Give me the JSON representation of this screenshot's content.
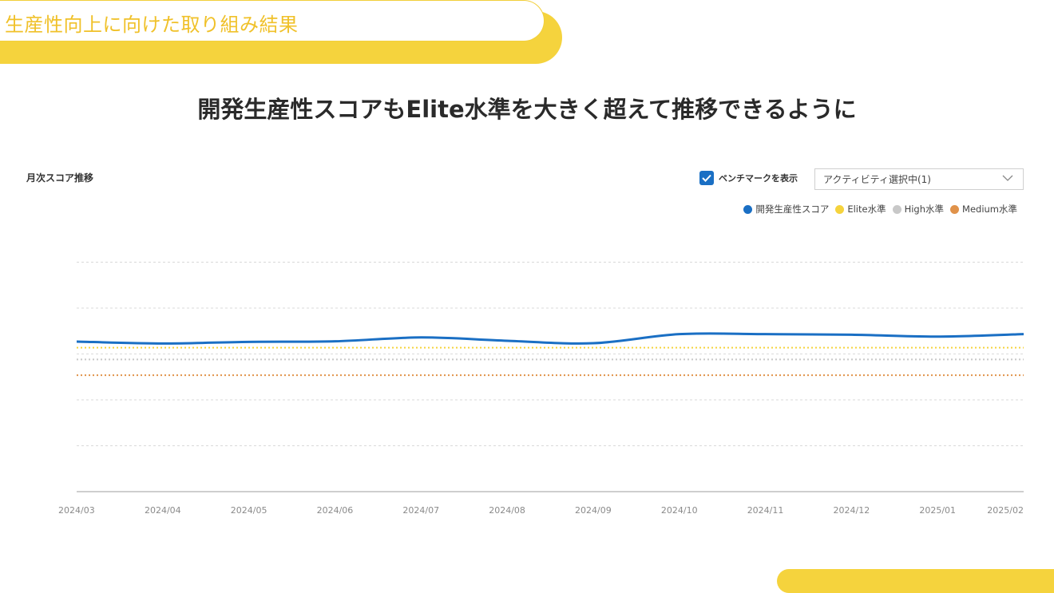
{
  "banner": {
    "text": "生産性向上に向けた取り組み結果"
  },
  "headline": "開発生産性スコアもElite水準を大きく超えて推移できるように",
  "chart_panel": {
    "title": "月次スコア推移",
    "benchmark_label": "ベンチマークを表示",
    "benchmark_checked": true,
    "activity_select": "アクティビティ選択中(1)"
  },
  "chart_data": {
    "type": "line",
    "x": [
      "2024/03",
      "2024/04",
      "2024/05",
      "2024/06",
      "2024/07",
      "2024/08",
      "2024/09",
      "2024/10",
      "2024/11",
      "2024/12",
      "2025/01",
      "2025/02"
    ],
    "ylim": [
      0,
      100
    ],
    "grid": true,
    "legend_position": "top-right",
    "series": [
      {
        "name": "開発生産性スコア",
        "color": "#1a6fc4",
        "values": [
          54.5,
          53.8,
          54.4,
          54.6,
          56.0,
          54.8,
          53.9,
          57.2,
          57.2,
          57.0,
          56.3,
          57.2
        ]
      },
      {
        "name": "Elite水準",
        "color": "#f5d33d",
        "values": [
          52.3,
          52.3,
          52.3,
          52.3,
          52.3,
          52.3,
          52.3,
          52.3,
          52.3,
          52.3,
          52.3,
          52.3
        ]
      },
      {
        "name": "High水準",
        "color": "#c8c8c8",
        "values": [
          48.0,
          48.0,
          48.0,
          48.0,
          48.0,
          48.0,
          48.0,
          48.0,
          48.0,
          48.0,
          48.0,
          48.0
        ]
      },
      {
        "name": "Medium水準",
        "color": "#e0924a",
        "values": [
          42.3,
          42.3,
          42.3,
          42.3,
          42.3,
          42.3,
          42.3,
          42.3,
          42.3,
          42.3,
          42.3,
          42.3
        ]
      }
    ]
  }
}
